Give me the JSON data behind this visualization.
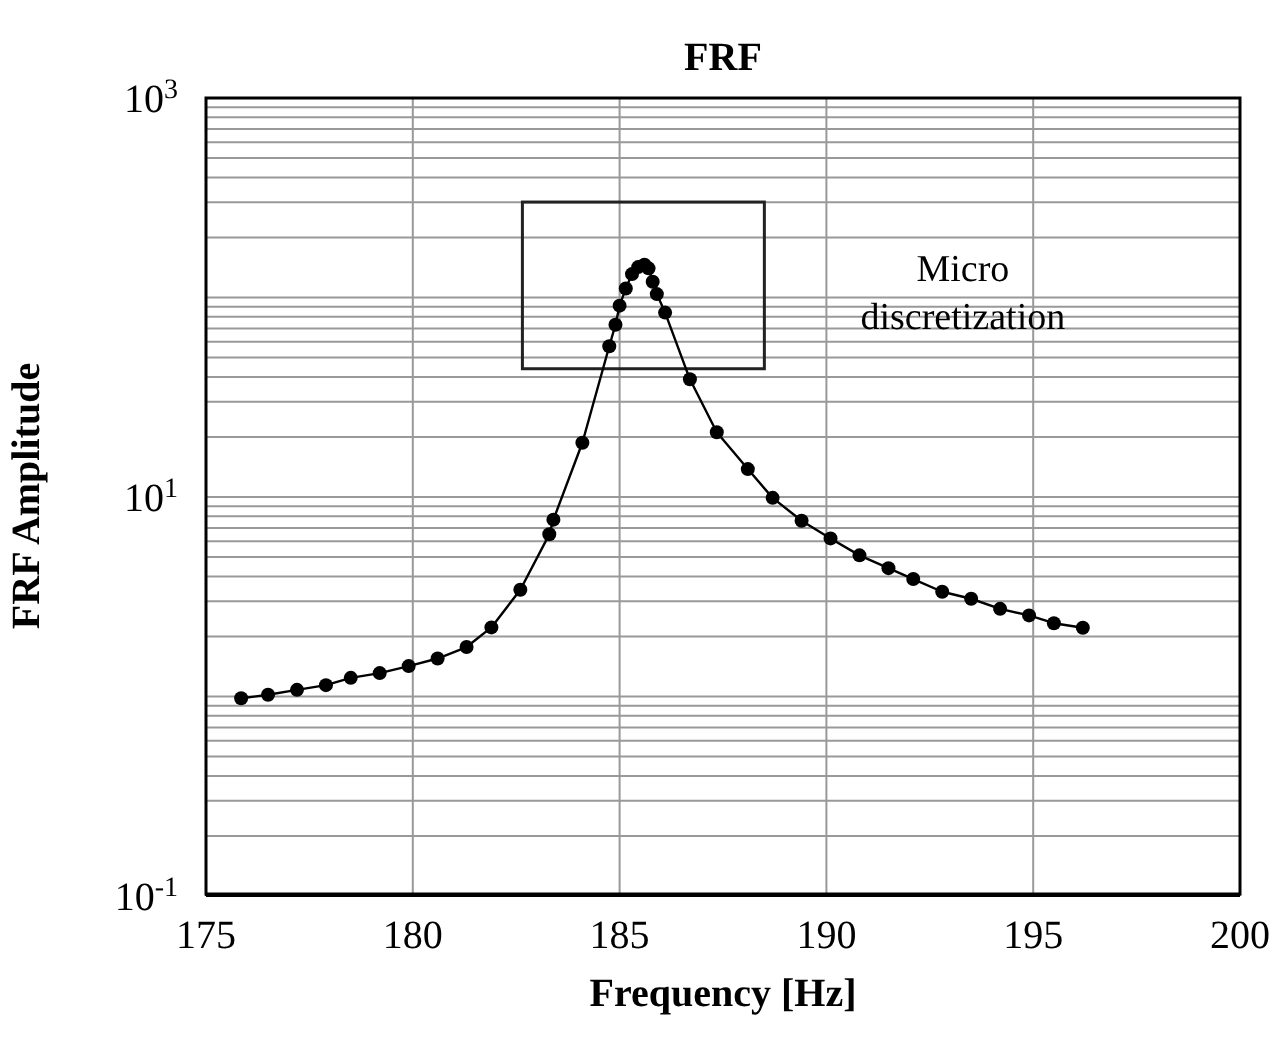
{
  "chart_data": {
    "type": "line",
    "title": "FRF",
    "xlabel": "Frequency [Hz]",
    "ylabel": "FRF Amplitude",
    "annotations": [
      "Micro discretization"
    ],
    "x": [
      175.85,
      176.5,
      177.2,
      177.9,
      178.5,
      179.2,
      179.9,
      180.6,
      181.3,
      181.9,
      182.6,
      183.3,
      183.4,
      184.1,
      184.75,
      184.9,
      185.0,
      185.15,
      185.3,
      185.45,
      185.6,
      185.7,
      185.8,
      185.9,
      186.1,
      186.7,
      187.35,
      188.1,
      188.7,
      189.4,
      190.1,
      190.8,
      191.5,
      192.1,
      192.8,
      193.5,
      194.2,
      194.9,
      195.5,
      196.2
    ],
    "series": [
      {
        "color": "#000000",
        "values": [
          0.98,
          1.02,
          1.08,
          1.14,
          1.24,
          1.31,
          1.42,
          1.55,
          1.77,
          2.22,
          3.43,
          6.5,
          7.7,
          18.7,
          57,
          73,
          91,
          111,
          131,
          142,
          146,
          140,
          120,
          104,
          84,
          38.9,
          21.1,
          13.8,
          9.9,
          7.6,
          6.2,
          5.1,
          4.4,
          3.88,
          3.35,
          3.09,
          2.75,
          2.55,
          2.33,
          2.21
        ]
      }
    ],
    "log": "y",
    "xlim": [
      175,
      200
    ],
    "xticks": [
      175,
      180,
      185,
      190,
      195,
      200
    ],
    "ylim": [
      0.1,
      1000
    ],
    "yticks": [
      {
        "value": 0.1,
        "label": "10$^{-1}$"
      },
      {
        "value": 0.2,
        "label": null
      },
      {
        "value": 0.3,
        "label": null
      },
      {
        "value": 0.4,
        "label": null
      },
      {
        "value": 0.5,
        "label": null
      },
      {
        "value": 0.6,
        "label": null
      },
      {
        "value": 0.7,
        "label": null
      },
      {
        "value": 0.8,
        "label": null
      },
      {
        "value": 0.9,
        "label": null
      },
      {
        "value": 1,
        "label": null
      },
      {
        "value": 2,
        "label": null
      },
      {
        "value": 3,
        "label": null
      },
      {
        "value": 4,
        "label": null
      },
      {
        "value": 5,
        "label": null
      },
      {
        "value": 6,
        "label": null
      },
      {
        "value": 7,
        "label": null
      },
      {
        "value": 8,
        "label": null
      },
      {
        "value": 9,
        "label": null
      },
      {
        "value": 10,
        "label": "10$^{1}$"
      },
      {
        "value": 20,
        "label": null
      },
      {
        "value": 30,
        "label": null
      },
      {
        "value": 40,
        "label": null
      },
      {
        "value": 50,
        "label": null
      },
      {
        "value": 60,
        "label": null
      },
      {
        "value": 70,
        "label": null
      },
      {
        "value": 80,
        "label": null
      },
      {
        "value": 90,
        "label": null
      },
      {
        "value": 100,
        "label": null
      },
      {
        "value": 200,
        "label": null
      },
      {
        "value": 300,
        "label": null
      },
      {
        "value": 400,
        "label": null
      },
      {
        "value": 500,
        "label": null
      },
      {
        "value": 600,
        "label": null
      },
      {
        "value": 700,
        "label": null
      },
      {
        "value": 800,
        "label": null
      },
      {
        "value": 900,
        "label": null
      },
      {
        "value": 1000,
        "label": "10$^{3}$"
      }
    ],
    "grid": true,
    "legend": false,
    "marker": "circle",
    "line_style": "solid"
  }
}
